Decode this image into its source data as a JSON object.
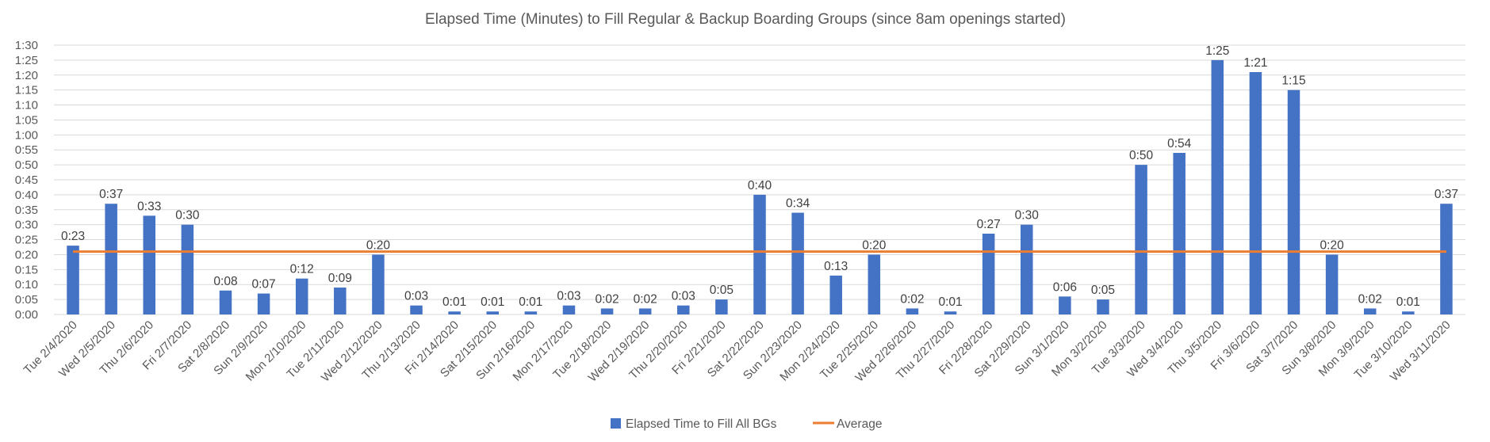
{
  "chart_data": {
    "type": "bar",
    "title": "Elapsed Time (Minutes) to Fill Regular & Backup Boarding Groups (since 8am openings started)",
    "xlabel": "",
    "ylabel": "",
    "y_unit": "minutes",
    "ylim": [
      0,
      90
    ],
    "y_ticks": [
      0,
      5,
      10,
      15,
      20,
      25,
      30,
      35,
      40,
      45,
      50,
      55,
      60,
      65,
      70,
      75,
      80,
      85,
      90
    ],
    "y_tick_labels": [
      "0:00",
      "0:05",
      "0:10",
      "0:15",
      "0:20",
      "0:25",
      "0:30",
      "0:35",
      "0:40",
      "0:45",
      "0:50",
      "0:55",
      "1:00",
      "1:05",
      "1:10",
      "1:15",
      "1:20",
      "1:25",
      "1:30"
    ],
    "grid": true,
    "legend_position": "bottom",
    "categories": [
      "Tue 2/4/2020",
      "Wed 2/5/2020",
      "Thu 2/6/2020",
      "Fri 2/7/2020",
      "Sat 2/8/2020",
      "Sun 2/9/2020",
      "Mon 2/10/2020",
      "Tue 2/11/2020",
      "Wed 2/12/2020",
      "Thu 2/13/2020",
      "Fri 2/14/2020",
      "Sat 2/15/2020",
      "Sun 2/16/2020",
      "Mon 2/17/2020",
      "Tue 2/18/2020",
      "Wed 2/19/2020",
      "Thu 2/20/2020",
      "Fri 2/21/2020",
      "Sat 2/22/2020",
      "Sun 2/23/2020",
      "Mon 2/24/2020",
      "Tue 2/25/2020",
      "Wed 2/26/2020",
      "Thu 2/27/2020",
      "Fri 2/28/2020",
      "Sat 2/29/2020",
      "Sun 3/1/2020",
      "Mon 3/2/2020",
      "Tue 3/3/2020",
      "Wed 3/4/2020",
      "Thu 3/5/2020",
      "Fri 3/6/2020",
      "Sat 3/7/2020",
      "Sun 3/8/2020",
      "Mon 3/9/2020",
      "Tue 3/10/2020",
      "Wed 3/11/2020"
    ],
    "series": [
      {
        "name": "Elapsed Time to Fill All BGs",
        "type": "bar",
        "color": "#4472C4",
        "values": [
          23,
          37,
          33,
          30,
          8,
          7,
          12,
          9,
          20,
          3,
          1,
          1,
          1,
          3,
          2,
          2,
          3,
          5,
          40,
          34,
          13,
          20,
          2,
          1,
          27,
          30,
          6,
          5,
          50,
          54,
          85,
          81,
          75,
          20,
          2,
          1,
          37
        ],
        "labels": [
          "0:23",
          "0:37",
          "0:33",
          "0:30",
          "0:08",
          "0:07",
          "0:12",
          "0:09",
          "0:20",
          "0:03",
          "0:01",
          "0:01",
          "0:01",
          "0:03",
          "0:02",
          "0:02",
          "0:03",
          "0:05",
          "0:40",
          "0:34",
          "0:13",
          "0:20",
          "0:02",
          "0:01",
          "0:27",
          "0:30",
          "0:06",
          "0:05",
          "0:50",
          "0:54",
          "1:25",
          "1:21",
          "1:15",
          "0:20",
          "0:02",
          "0:01",
          "0:37"
        ]
      },
      {
        "name": "Average",
        "type": "line",
        "color": "#ED7D31",
        "value": 21
      }
    ]
  }
}
